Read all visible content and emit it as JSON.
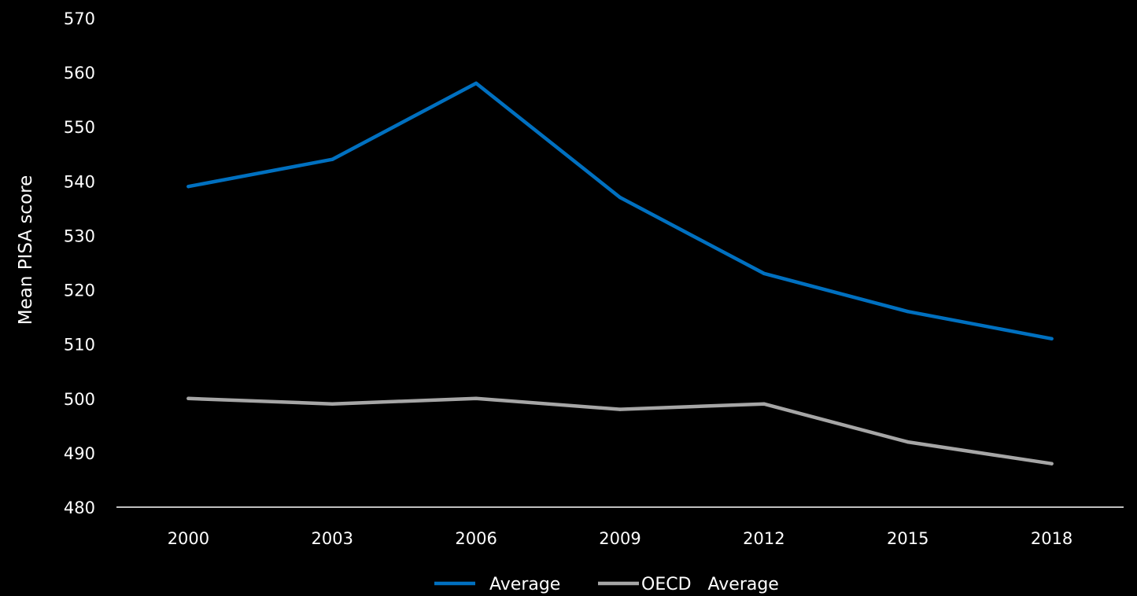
{
  "chart_data": {
    "type": "line",
    "title": "",
    "xlabel": "",
    "ylabel": "Mean PISA score",
    "ylim": [
      480,
      570
    ],
    "yticks": [
      "480",
      "490",
      "500",
      "510",
      "520",
      "530",
      "540",
      "550",
      "560",
      "570"
    ],
    "categories": [
      "2000",
      "2003",
      "2006",
      "2009",
      "2012",
      "2015",
      "2018"
    ],
    "grid": false,
    "legend_position": "bottom",
    "series": [
      {
        "name": "Average",
        "color": "#0070c0",
        "values": [
          539,
          544,
          558,
          537,
          523,
          516,
          511
        ]
      },
      {
        "name": "OECD   Average",
        "color": "#a6a6a6",
        "values": [
          500,
          499,
          500,
          498,
          499,
          492,
          488
        ]
      }
    ],
    "axis_color": "#ffffff",
    "background": "#000000"
  }
}
